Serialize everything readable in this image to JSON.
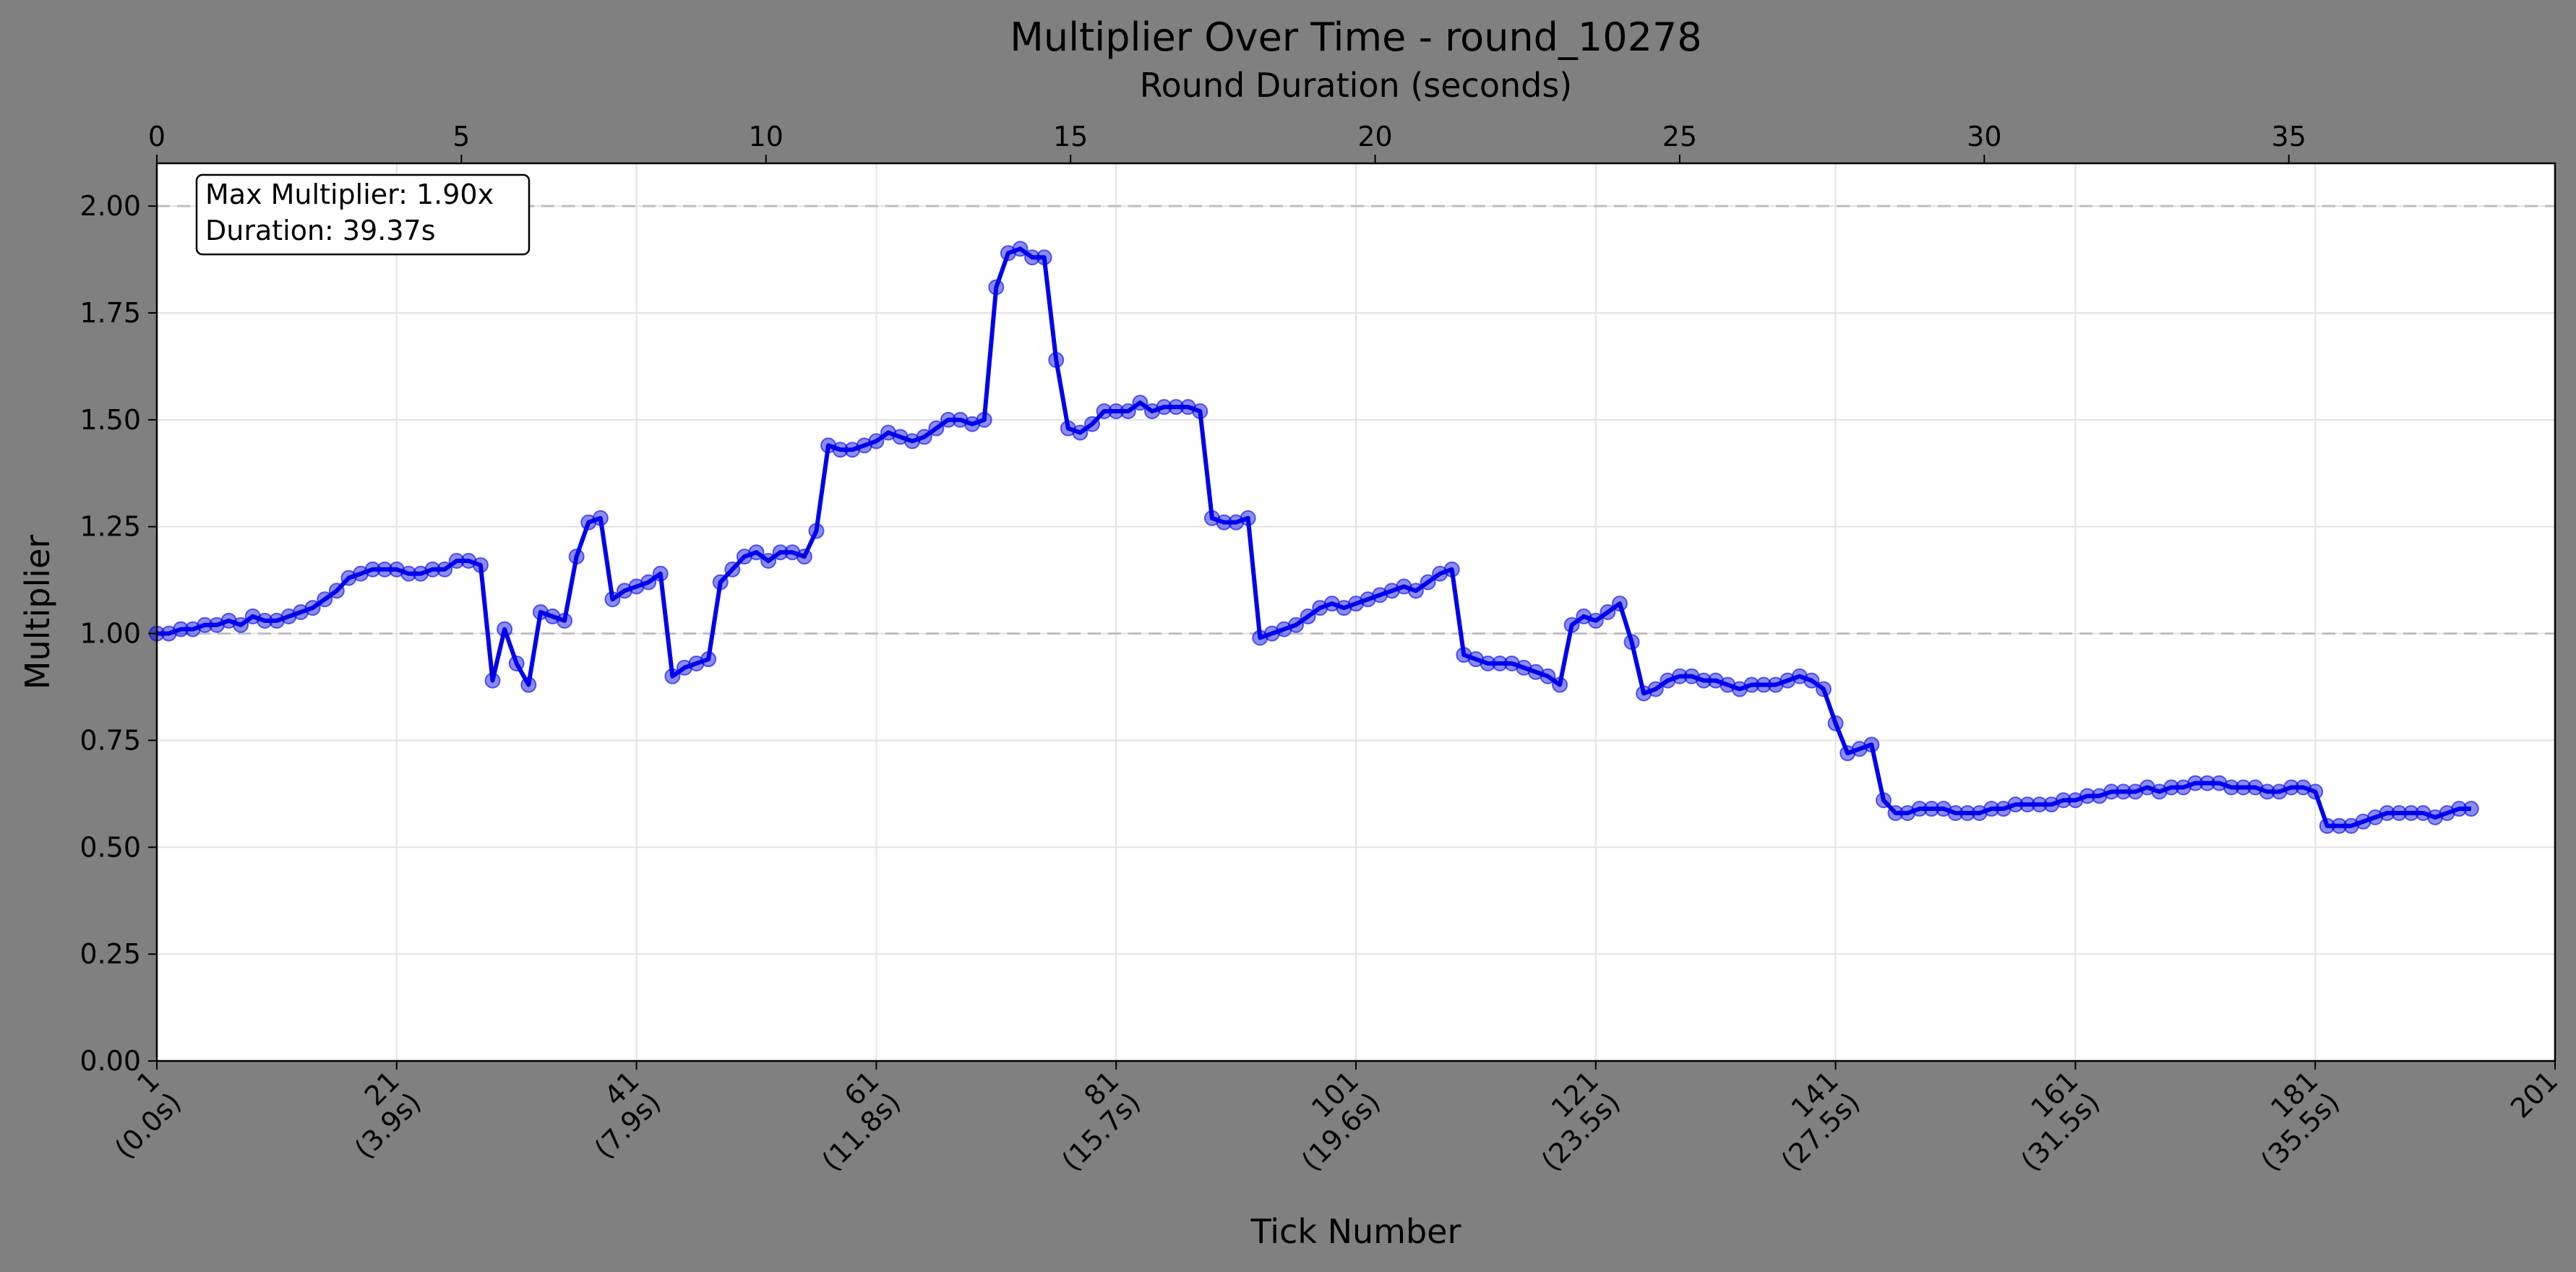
{
  "chart_data": {
    "type": "line",
    "title": "Multiplier Over Time - round_10278",
    "top_xlabel": "Round Duration (seconds)",
    "xlabel": "Tick Number",
    "ylabel": "Multiplier",
    "xlim": [
      1,
      201
    ],
    "top_xlim": [
      0,
      39.37
    ],
    "ylim": [
      0,
      2.1
    ],
    "yticks": [
      "0.00",
      "0.25",
      "0.50",
      "0.75",
      "1.00",
      "1.25",
      "1.50",
      "1.75",
      "2.00"
    ],
    "ytick_values": [
      0,
      0.25,
      0.5,
      0.75,
      1.0,
      1.25,
      1.5,
      1.75,
      2.0
    ],
    "xticks": [
      {
        "tick": 1,
        "line1": "1",
        "line2": "(0.0s)"
      },
      {
        "tick": 21,
        "line1": "21",
        "line2": "(3.9s)"
      },
      {
        "tick": 41,
        "line1": "41",
        "line2": "(7.9s)"
      },
      {
        "tick": 61,
        "line1": "61",
        "line2": "(11.8s)"
      },
      {
        "tick": 81,
        "line1": "81",
        "line2": "(15.7s)"
      },
      {
        "tick": 101,
        "line1": "101",
        "line2": "(19.6s)"
      },
      {
        "tick": 121,
        "line1": "121",
        "line2": "(23.5s)"
      },
      {
        "tick": 141,
        "line1": "141",
        "line2": "(27.5s)"
      },
      {
        "tick": 161,
        "line1": "161",
        "line2": "(31.5s)"
      },
      {
        "tick": 181,
        "line1": "181",
        "line2": "(35.5s)"
      },
      {
        "tick": 201,
        "line1": "201",
        "line2": ""
      }
    ],
    "top_xticks": [
      0,
      5,
      10,
      15,
      20,
      25,
      30,
      35
    ],
    "reference_lines": [
      1.0,
      2.0
    ],
    "grid": true,
    "annotation": {
      "line1": "Max Multiplier: 1.90x",
      "line2": "Duration: 39.37s"
    },
    "series": [
      {
        "color": "#0000ee",
        "values": [
          1.0,
          1.0,
          1.01,
          1.01,
          1.02,
          1.02,
          1.03,
          1.02,
          1.04,
          1.03,
          1.03,
          1.04,
          1.05,
          1.06,
          1.08,
          1.1,
          1.13,
          1.14,
          1.15,
          1.15,
          1.15,
          1.14,
          1.14,
          1.15,
          1.15,
          1.17,
          1.17,
          1.16,
          0.89,
          1.01,
          0.93,
          0.88,
          1.05,
          1.04,
          1.03,
          1.18,
          1.26,
          1.27,
          1.08,
          1.1,
          1.11,
          1.12,
          1.14,
          0.9,
          0.92,
          0.93,
          0.94,
          1.12,
          1.15,
          1.18,
          1.19,
          1.17,
          1.19,
          1.19,
          1.18,
          1.24,
          1.44,
          1.43,
          1.43,
          1.44,
          1.45,
          1.47,
          1.46,
          1.45,
          1.46,
          1.48,
          1.5,
          1.5,
          1.49,
          1.5,
          1.81,
          1.89,
          1.9,
          1.88,
          1.88,
          1.64,
          1.48,
          1.47,
          1.49,
          1.52,
          1.52,
          1.52,
          1.54,
          1.52,
          1.53,
          1.53,
          1.53,
          1.52,
          1.27,
          1.26,
          1.26,
          1.27,
          0.99,
          1.0,
          1.01,
          1.02,
          1.04,
          1.06,
          1.07,
          1.06,
          1.07,
          1.08,
          1.09,
          1.1,
          1.11,
          1.1,
          1.12,
          1.14,
          1.15,
          0.95,
          0.94,
          0.93,
          0.93,
          0.93,
          0.92,
          0.91,
          0.9,
          0.88,
          1.02,
          1.04,
          1.03,
          1.05,
          1.07,
          0.98,
          0.86,
          0.87,
          0.89,
          0.9,
          0.9,
          0.89,
          0.89,
          0.88,
          0.87,
          0.88,
          0.88,
          0.88,
          0.89,
          0.9,
          0.89,
          0.87,
          0.79,
          0.72,
          0.73,
          0.74,
          0.61,
          0.58,
          0.58,
          0.59,
          0.59,
          0.59,
          0.58,
          0.58,
          0.58,
          0.59,
          0.59,
          0.6,
          0.6,
          0.6,
          0.6,
          0.61,
          0.61,
          0.62,
          0.62,
          0.63,
          0.63,
          0.63,
          0.64,
          0.63,
          0.64,
          0.64,
          0.65,
          0.65,
          0.65,
          0.64,
          0.64,
          0.64,
          0.63,
          0.63,
          0.64,
          0.64,
          0.63,
          0.55,
          0.55,
          0.55,
          0.56,
          0.57,
          0.58,
          0.58,
          0.58,
          0.58,
          0.57,
          0.58,
          0.59,
          0.59
        ]
      }
    ]
  }
}
